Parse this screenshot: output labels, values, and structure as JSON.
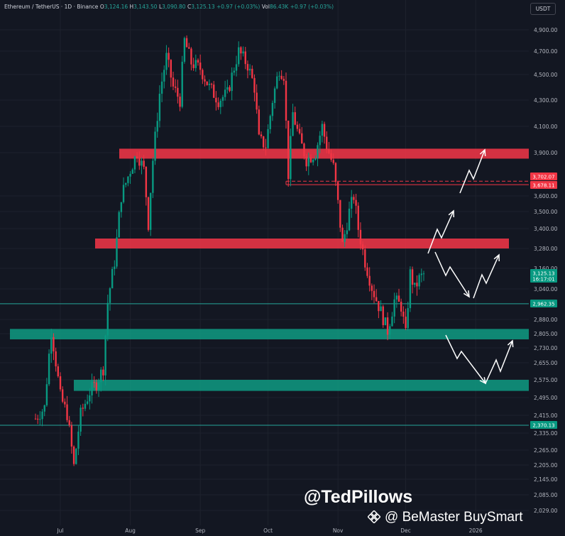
{
  "header": {
    "symbol": "Ethereum / TetherUS · 1D · Binance",
    "o_label": "O",
    "o_value": "3,124.16",
    "h_label": "H",
    "h_value": "3,143.50",
    "l_label": "L",
    "l_value": "3,090.80",
    "c_label": "C",
    "c_value": "3,125.13",
    "change": "+0.97 (+0.03%)",
    "vol_label": "Vol",
    "vol_value": "86.43K",
    "vol_change": "+0.97 (+0.03%)"
  },
  "currency_button": "USDT",
  "watermark": {
    "handle": "@TedPillows",
    "source": "@ BeMaster BuySmart"
  },
  "colors": {
    "background": "#131722",
    "up": "#089981",
    "down": "#f23645",
    "resistance_zone": "#e53445",
    "support_zone": "#0f9b83",
    "level_line": "#26a69a",
    "axis_text": "#b2b5be"
  },
  "chart_data": {
    "type": "candlestick",
    "x_tick_labels": [
      "Jul",
      "Aug",
      "Sep",
      "Oct",
      "Nov",
      "Dec",
      "2026"
    ],
    "y_tick_labels": [
      "4,900.00",
      "4,700.00",
      "4,500.00",
      "4,300.00",
      "4,100.00",
      "3,900.00",
      "3,600.00",
      "3,500.00",
      "3,400.00",
      "3,280.00",
      "3,160.00",
      "3,040.00",
      "2,880.00",
      "2,805.00",
      "2,730.00",
      "2,655.00",
      "2,575.00",
      "2,495.00",
      "2,415.00",
      "2,335.00",
      "2,265.00",
      "2,205.00",
      "2,145.00",
      "2,085.00",
      "2,029.00"
    ],
    "price_labels": [
      {
        "value": "3,702.07",
        "color": "#f23645"
      },
      {
        "value": "3,678.11",
        "color": "#f23645"
      },
      {
        "value": "3,125.13",
        "sub": "16:17:01",
        "color": "#089981"
      },
      {
        "value": "2,962.35",
        "color": "#089981"
      },
      {
        "value": "2,370.13",
        "color": "#089981"
      }
    ],
    "zones": [
      {
        "type": "resistance",
        "from": 3880,
        "to": 3930
      },
      {
        "type": "resistance",
        "from": 3280,
        "to": 3340
      },
      {
        "type": "support",
        "from": 2775,
        "to": 2830
      },
      {
        "type": "support",
        "from": 2525,
        "to": 2575
      }
    ],
    "horizontal_levels": [
      2962.35,
      2370.13,
      3702.07,
      3678.11
    ],
    "close_path": [
      [
        "Jun 20",
        2400
      ],
      [
        "Jun 24",
        2450
      ],
      [
        "Jun 27",
        2820
      ],
      [
        "Jul 1",
        2500
      ],
      [
        "Jul 4",
        2420
      ],
      [
        "Jul 7",
        2200
      ],
      [
        "Jul 10",
        2420
      ],
      [
        "Jul 14",
        2520
      ],
      [
        "Jul 17",
        2560
      ],
      [
        "Jul 20",
        2630
      ],
      [
        "Jul 22",
        2970
      ],
      [
        "Jul 25",
        3200
      ],
      [
        "Jul 28",
        3600
      ],
      [
        "Aug 1",
        3780
      ],
      [
        "Aug 4",
        3900
      ],
      [
        "Aug 7",
        3780
      ],
      [
        "Aug 9",
        3430
      ],
      [
        "Aug 11",
        3850
      ],
      [
        "Aug 14",
        4350
      ],
      [
        "Aug 17",
        4650
      ],
      [
        "Aug 20",
        4400
      ],
      [
        "Aug 23",
        4300
      ],
      [
        "Aug 25",
        4800
      ],
      [
        "Aug 28",
        4600
      ],
      [
        "Sep 1",
        4550
      ],
      [
        "Sep 5",
        4400
      ],
      [
        "Sep 9",
        4300
      ],
      [
        "Sep 13",
        4350
      ],
      [
        "Sep 18",
        4700
      ],
      [
        "Sep 22",
        4580
      ],
      [
        "Sep 25",
        4400
      ],
      [
        "Sep 27",
        4000
      ],
      [
        "Sep 30",
        3950
      ],
      [
        "Oct 3",
        4300
      ],
      [
        "Oct 6",
        4550
      ],
      [
        "Oct 8",
        4500
      ],
      [
        "Oct 10",
        3750
      ],
      [
        "Oct 12",
        4200
      ],
      [
        "Oct 15",
        4000
      ],
      [
        "Oct 18",
        3850
      ],
      [
        "Oct 22",
        3900
      ],
      [
        "Oct 25",
        4100
      ],
      [
        "Oct 27",
        3950
      ],
      [
        "Oct 30",
        3800
      ],
      [
        "Nov 3",
        3300
      ],
      [
        "Nov 6",
        3500
      ],
      [
        "Nov 8",
        3600
      ],
      [
        "Nov 10",
        3400
      ],
      [
        "Nov 13",
        3200
      ],
      [
        "Nov 16",
        3050
      ],
      [
        "Nov 20",
        2920
      ],
      [
        "Nov 23",
        2820
      ],
      [
        "Nov 26",
        2980
      ],
      [
        "Nov 29",
        2950
      ],
      [
        "Dec 1",
        2800
      ],
      [
        "Dec 3",
        3130
      ],
      [
        "Dec 5",
        3040
      ],
      [
        "Dec 7",
        3100
      ],
      [
        "Dec 9",
        3125
      ]
    ]
  }
}
